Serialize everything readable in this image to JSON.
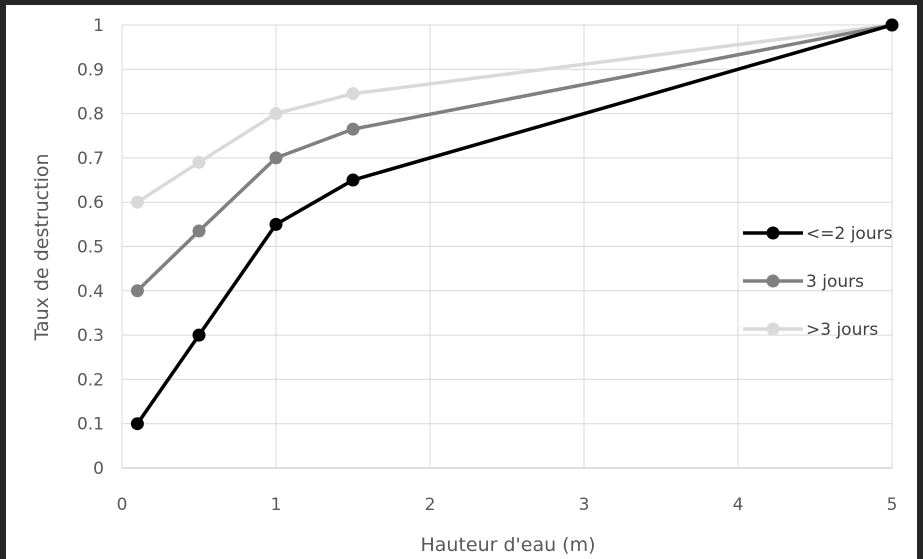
{
  "chart_data": {
    "type": "line",
    "title": "",
    "xlabel": "Hauteur d'eau (m)",
    "ylabel": "Taux de destruction",
    "xlim": [
      0,
      5
    ],
    "ylim": [
      0,
      1
    ],
    "xticks": [
      "0",
      "1",
      "2",
      "3",
      "4",
      "5"
    ],
    "yticks": [
      "0",
      "0.1",
      "0.2",
      "0.3",
      "0.4",
      "0.5",
      "0.6",
      "0.7",
      "0.8",
      "0.9",
      "1"
    ],
    "grid": true,
    "legend_position": "right",
    "series": [
      {
        "name": "<=2 jours",
        "color": "#000000",
        "x": [
          0.1,
          0.5,
          1,
          1.5,
          5
        ],
        "y": [
          0.1,
          0.3,
          0.55,
          0.65,
          1
        ]
      },
      {
        "name": "3 jours",
        "color": "#808080",
        "x": [
          0.1,
          0.5,
          1,
          1.5,
          5
        ],
        "y": [
          0.4,
          0.535,
          0.7,
          0.765,
          1
        ]
      },
      {
        "name": ">3 jours",
        "color": "#d9d9d9",
        "x": [
          0.1,
          0.5,
          1,
          1.5,
          5
        ],
        "y": [
          0.6,
          0.69,
          0.8,
          0.845,
          1
        ]
      }
    ]
  }
}
